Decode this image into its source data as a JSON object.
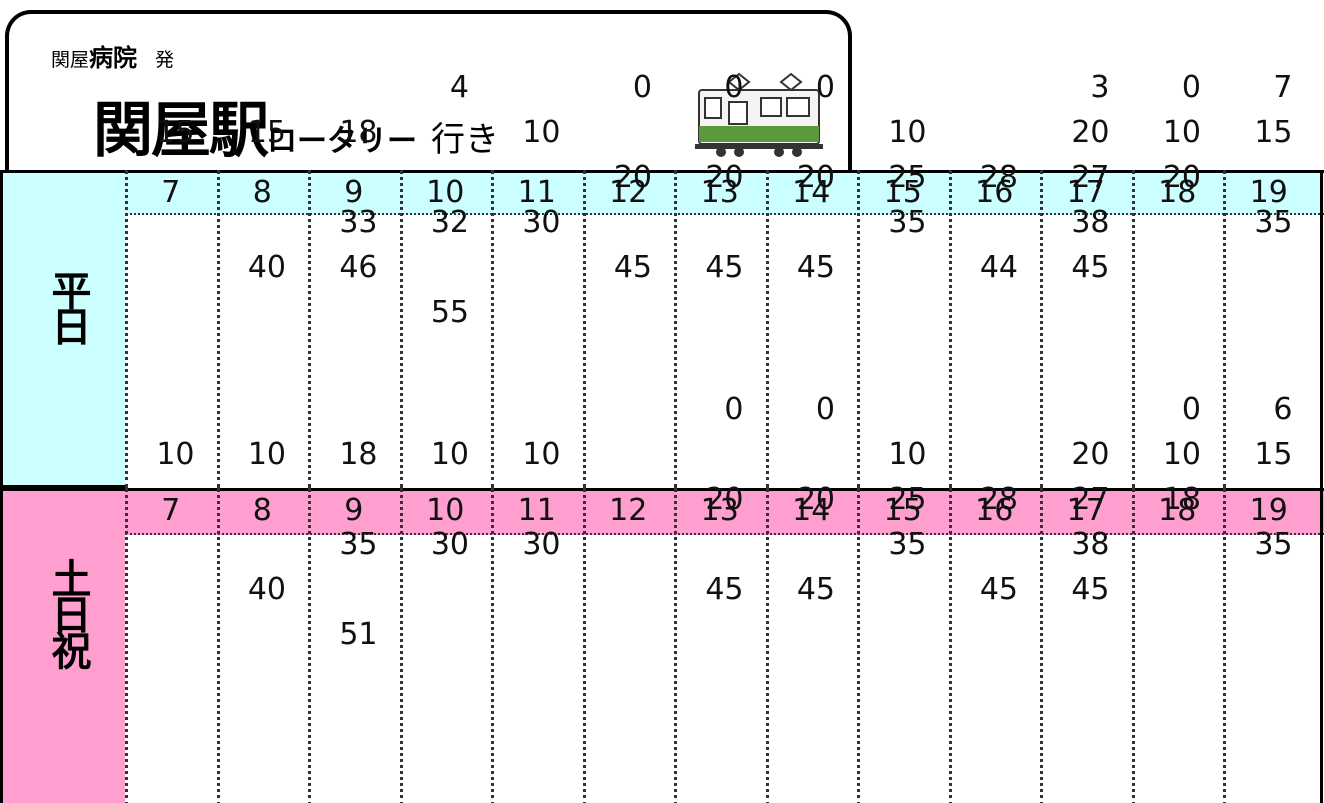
{
  "header": {
    "origin_prefix": "関屋",
    "origin_bold": "病院",
    "departs": "発",
    "destination": "関屋駅",
    "destination_sub": "ロータリー",
    "bound_for": "行き"
  },
  "sections": [
    {
      "label": "平日",
      "hours": [
        7,
        8,
        9,
        10,
        11,
        12,
        13,
        14,
        15,
        16,
        17,
        18,
        19
      ],
      "rows": [
        [
          null,
          null,
          null,
          4,
          null,
          0,
          0,
          0,
          null,
          null,
          3,
          0,
          7
        ],
        [
          15,
          15,
          18,
          null,
          10,
          null,
          null,
          null,
          10,
          null,
          20,
          10,
          15
        ],
        [
          null,
          null,
          null,
          null,
          null,
          20,
          20,
          20,
          25,
          28,
          27,
          20,
          null
        ],
        [
          null,
          null,
          33,
          32,
          30,
          null,
          null,
          null,
          35,
          null,
          38,
          null,
          35
        ],
        [
          null,
          40,
          46,
          null,
          null,
          45,
          45,
          45,
          null,
          44,
          45,
          null,
          null
        ],
        [
          null,
          null,
          null,
          55,
          null,
          null,
          null,
          null,
          null,
          null,
          null,
          null,
          null
        ]
      ]
    },
    {
      "label": "土日祝",
      "hours": [
        7,
        8,
        9,
        10,
        11,
        12,
        13,
        14,
        15,
        16,
        17,
        18,
        19
      ],
      "rows": [
        [
          null,
          null,
          null,
          null,
          null,
          null,
          0,
          0,
          null,
          null,
          null,
          0,
          6
        ],
        [
          10,
          10,
          18,
          10,
          10,
          null,
          null,
          null,
          10,
          null,
          20,
          10,
          15
        ],
        [
          null,
          null,
          null,
          null,
          null,
          null,
          20,
          20,
          25,
          28,
          27,
          18,
          null
        ],
        [
          null,
          null,
          35,
          30,
          30,
          null,
          null,
          null,
          35,
          null,
          38,
          null,
          35
        ],
        [
          null,
          40,
          null,
          null,
          null,
          null,
          45,
          45,
          null,
          45,
          45,
          null,
          null
        ],
        [
          null,
          null,
          51,
          null,
          null,
          null,
          null,
          null,
          null,
          null,
          null,
          null,
          null
        ]
      ]
    }
  ]
}
